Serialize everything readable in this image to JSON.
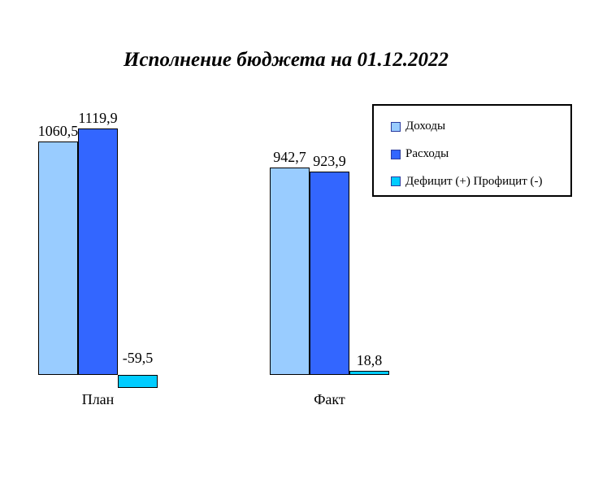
{
  "chart_data": {
    "type": "bar",
    "title": "Исполнение бюджета на 01.12.2022",
    "categories": [
      "План",
      "Факт"
    ],
    "series": [
      {
        "name": "Доходы",
        "color": "#99CCFF",
        "values": [
          1060.5,
          942.7
        ],
        "value_labels": [
          "1060,5",
          "942,7"
        ]
      },
      {
        "name": "Расходы",
        "color": "#3366FF",
        "values": [
          1119.9,
          923.9
        ],
        "value_labels": [
          "1119,9",
          "923,9"
        ]
      },
      {
        "name": "Дефицит (+) Профицит (-)",
        "color": "#00CCFF",
        "values": [
          -59.5,
          18.8
        ],
        "value_labels": [
          "-59,5",
          "18,8"
        ]
      }
    ],
    "ylim": [
      -100,
      1200
    ],
    "grid": false,
    "axes_visible": false,
    "value_labels": true,
    "value_label_decimal_separator": ",",
    "legend_position": "top-right"
  },
  "colors": {
    "bar_border": "#000000",
    "text": "#000000",
    "background": "#FFFFFF"
  }
}
